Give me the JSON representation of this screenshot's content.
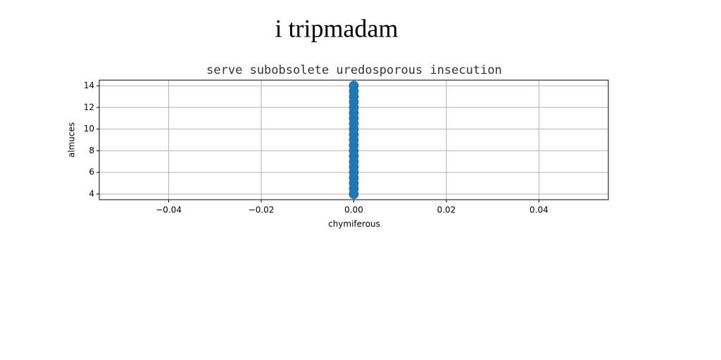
{
  "chart_data": {
    "type": "scatter",
    "title": "i tripmadam",
    "subtitle": "serve subobsolete uredosporous insecution",
    "xlabel": "chymiferous",
    "ylabel": "almuces",
    "x": [
      0,
      0,
      0,
      0,
      0,
      0,
      0,
      0,
      0,
      0,
      0,
      0,
      0,
      0,
      0,
      0,
      0,
      0,
      0,
      0,
      0
    ],
    "values": [
      4,
      4.5,
      5,
      5.5,
      6,
      6.5,
      7,
      7.5,
      8,
      8.5,
      9,
      9.5,
      10,
      10.5,
      11,
      11.5,
      12,
      12.5,
      13,
      13.5,
      14
    ],
    "color": "#1f77b4",
    "xlim": [
      -0.055,
      0.055
    ],
    "ylim": [
      3.48,
      14.52
    ],
    "xticks": [
      {
        "value": -0.04,
        "label": "−0.04"
      },
      {
        "value": -0.02,
        "label": "−0.02"
      },
      {
        "value": 0,
        "label": "0.00"
      },
      0.02,
      0.04
    ],
    "yticks": [
      4,
      6,
      8,
      10,
      12,
      14
    ],
    "grid": true
  }
}
